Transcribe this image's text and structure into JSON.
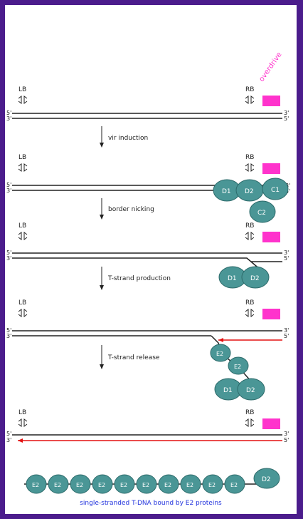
{
  "labels": {
    "lb": "LB",
    "rb": "RB",
    "five_prime": "5'",
    "three_prime": "3'",
    "overdrive": "overdrive"
  },
  "steps": [
    "vir induction",
    "border nicking",
    "T-strand production",
    "T-strand release"
  ],
  "proteins": {
    "d1": "D1",
    "d2": "D2",
    "c1": "C1",
    "c2": "C2",
    "e2": "E2"
  },
  "caption": "single-stranded T-DNA bound by E2 proteins",
  "colors": {
    "border": "#4b1c8c",
    "protein": "#4a9696",
    "protein_outline": "#2c6a6a",
    "overdrive": "#ff33cc",
    "t_strand": "#e31010",
    "caption": "#2233dd",
    "dna": "#222222"
  },
  "icons": [
    "border-repeat-icon",
    "overdrive-box-icon",
    "arrow-down-icon"
  ]
}
